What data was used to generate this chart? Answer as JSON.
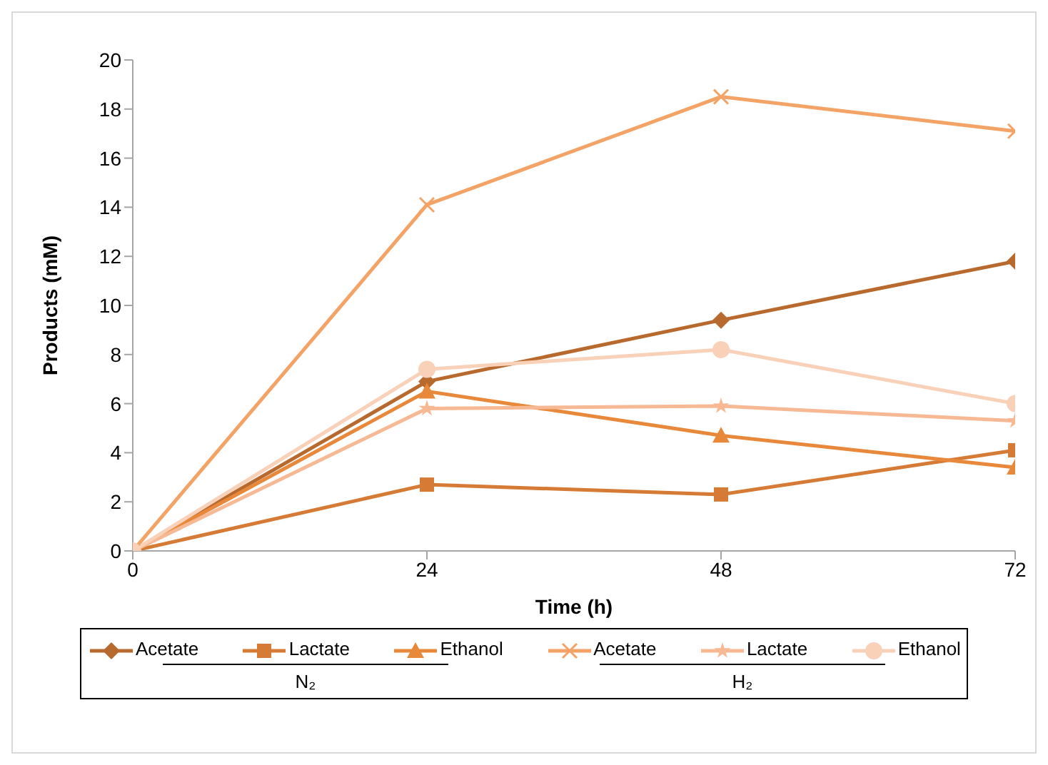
{
  "chart_data": {
    "type": "line",
    "xlabel": "Time (h)",
    "ylabel": "Products (mM)",
    "x": [
      0,
      24,
      48,
      72
    ],
    "xlim": [
      0,
      72
    ],
    "xticks": [
      0,
      24,
      48,
      72
    ],
    "ylim": [
      0,
      20
    ],
    "yticks": [
      0,
      2,
      4,
      6,
      8,
      10,
      12,
      14,
      16,
      18,
      20
    ],
    "legend": "bottom",
    "annotations": [
      "N₂",
      "H₂"
    ],
    "series": [
      {
        "name": "Acetate",
        "color": "#b8692e",
        "marker": "diamond",
        "values": [
          0,
          6.9,
          9.4,
          11.8
        ]
      },
      {
        "name": "Lactate",
        "color": "#d67b35",
        "marker": "square",
        "values": [
          0,
          2.7,
          2.3,
          4.1
        ]
      },
      {
        "name": "Ethanol",
        "color": "#e8883a",
        "marker": "triangle",
        "values": [
          0,
          6.5,
          4.7,
          3.4
        ]
      },
      {
        "name": "Acetate",
        "color": "#f4a366",
        "marker": "cross",
        "values": [
          0,
          14.1,
          18.5,
          17.1
        ]
      },
      {
        "name": "Lactate",
        "color": "#f7b894",
        "marker": "star",
        "values": [
          0,
          5.8,
          5.9,
          5.3
        ]
      },
      {
        "name": "Ethanol",
        "color": "#f9d0b8",
        "marker": "circle",
        "values": [
          0,
          7.4,
          8.2,
          6.0
        ]
      }
    ]
  }
}
